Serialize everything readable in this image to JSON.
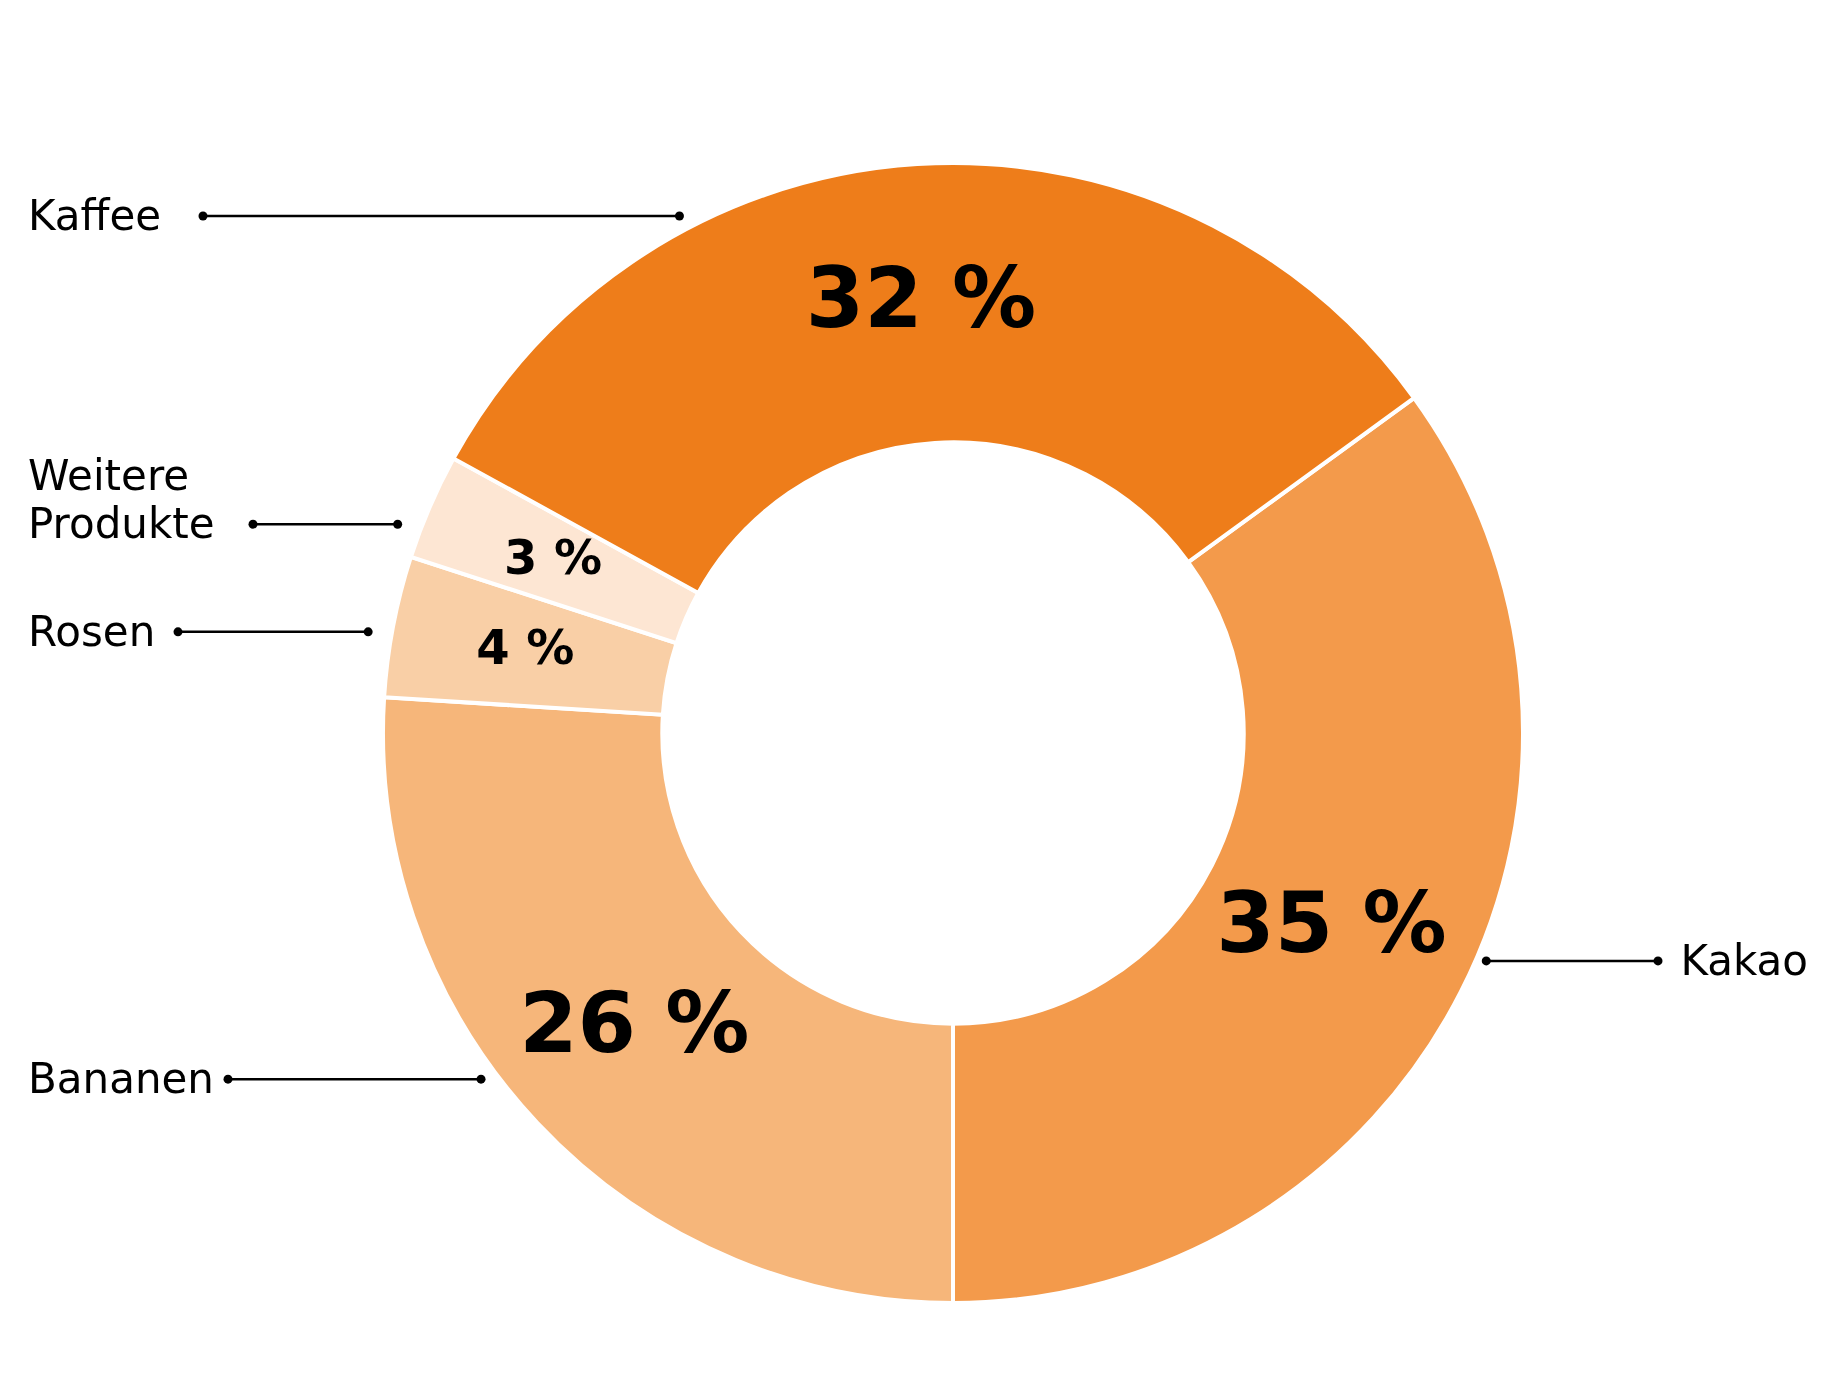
{
  "chart_data": {
    "type": "donut",
    "categories": [
      "Kakao",
      "Bananen",
      "Rosen",
      "Weitere Produkte",
      "Kaffee"
    ],
    "values": [
      35,
      26,
      4,
      3,
      32
    ],
    "colors": [
      "#f39a4b",
      "#f6b67a",
      "#f9cfa6",
      "#fde6d3",
      "#ee7d1a"
    ],
    "value_labels": [
      "35 %",
      "26 %",
      "4 %",
      "3 %",
      "32 %"
    ],
    "legend": false
  }
}
